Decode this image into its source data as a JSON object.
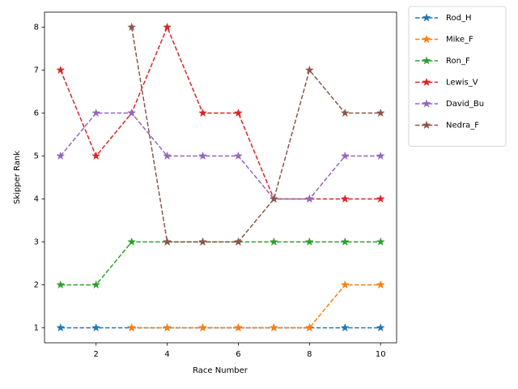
{
  "chart_data": {
    "type": "line",
    "x_label": "Race Number",
    "y_label": "Skipper Rank",
    "x": [
      1,
      2,
      3,
      4,
      5,
      6,
      7,
      8,
      9,
      10
    ],
    "series": [
      {
        "name": "Rod_H",
        "color": "#1f77b4",
        "values": [
          1,
          1,
          1,
          1,
          1,
          1,
          1,
          1,
          1,
          1
        ]
      },
      {
        "name": "Mike_F",
        "color": "#ff7f0e",
        "values": [
          null,
          null,
          1,
          1,
          1,
          1,
          1,
          1,
          2,
          2
        ]
      },
      {
        "name": "Ron_F",
        "color": "#2ca02c",
        "values": [
          2,
          2,
          3,
          3,
          3,
          3,
          3,
          3,
          3,
          3
        ]
      },
      {
        "name": "Lewis_V",
        "color": "#d62728",
        "values": [
          7,
          5,
          6,
          8,
          6,
          6,
          4,
          4,
          4,
          4
        ]
      },
      {
        "name": "David_Bu",
        "color": "#9467bd",
        "values": [
          5,
          6,
          6,
          5,
          5,
          5,
          4,
          4,
          5,
          5
        ]
      },
      {
        "name": "Nedra_F",
        "color": "#8c564b",
        "values": [
          null,
          null,
          8,
          3,
          3,
          3,
          4,
          7,
          6,
          6
        ]
      }
    ],
    "xlim": [
      0.55,
      10.45
    ],
    "xticks": [
      2,
      4,
      6,
      8,
      10
    ],
    "ylim": [
      0.65,
      8.35
    ],
    "yticks": [
      1,
      2,
      3,
      4,
      5,
      6,
      7,
      8
    ],
    "line_style": "dashed",
    "marker": "star",
    "legend": "outside-upper-right",
    "grid": false
  }
}
